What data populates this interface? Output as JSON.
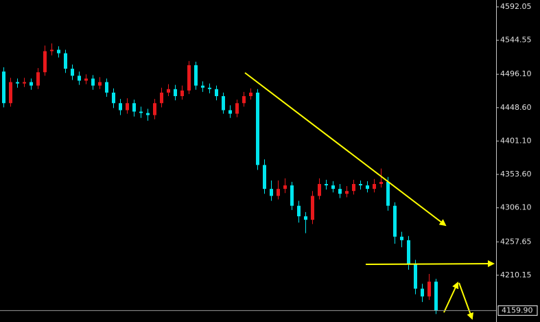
{
  "chart_data": {
    "type": "candlestick",
    "up_color": "#e8191c",
    "down_color": "#00e5ee",
    "ylim": [
      4143.6,
      4601.8
    ],
    "yticks": [
      4592.05,
      4544.55,
      {
        "value": 4496.1,
        "label": "4496.10"
      },
      {
        "value": 4448.6,
        "label": "4448.60"
      },
      {
        "value": 4401.1,
        "label": "4401.10"
      },
      {
        "value": 4353.6,
        "label": "4353.60"
      },
      {
        "value": 4306.1,
        "label": "4306.10"
      },
      4257.65,
      4210.15
    ],
    "last_price": {
      "value": 4159.9,
      "label": "4159.90"
    },
    "open": [
      4500,
      4455,
      4485,
      4483,
      4485,
      4480,
      4499,
      4529,
      4531,
      4526,
      4504,
      4494,
      4487,
      4490,
      4480,
      4485,
      4470,
      4455,
      4445,
      4455,
      4443,
      4441,
      4438,
      4455,
      4470,
      4475,
      4465,
      4473,
      4509,
      4480,
      4477,
      4475,
      4465,
      4445,
      4440,
      4455,
      4465,
      4470,
      4367,
      4333,
      4323,
      4333,
      4338,
      4309,
      4294,
      4289,
      4323,
      4340,
      4338,
      4333,
      4326,
      4330,
      4340,
      4338,
      4333,
      4340,
      4343,
      4309,
      4265,
      4260,
      4226,
      4191,
      4180,
      4201
    ],
    "high": [
      4506,
      4491,
      4490,
      4491,
      4490,
      4505,
      4537,
      4540,
      4536,
      4531,
      4510,
      4500,
      4496,
      4495,
      4492,
      4490,
      4476,
      4461,
      4462,
      4460,
      4450,
      4447,
      4461,
      4477,
      4482,
      4481,
      4480,
      4515,
      4514,
      4486,
      4483,
      4480,
      4470,
      4452,
      4460,
      4471,
      4476,
      4475,
      4375,
      4345,
      4345,
      4348,
      4343,
      4316,
      4300,
      4330,
      4348,
      4346,
      4344,
      4340,
      4337,
      4346,
      4345,
      4344,
      4347,
      4362,
      4350,
      4314,
      4272,
      4266,
      4232,
      4198,
      4212,
      4205
    ],
    "low": [
      4449,
      4450,
      4477,
      4478,
      4474,
      4475,
      4494,
      4523,
      4520,
      4498,
      4488,
      4481,
      4482,
      4474,
      4475,
      4464,
      4448,
      4438,
      4440,
      4436,
      4434,
      4430,
      4432,
      4449,
      4465,
      4459,
      4460,
      4468,
      4474,
      4471,
      4469,
      4459,
      4440,
      4434,
      4435,
      4450,
      4460,
      4360,
      4326,
      4316,
      4318,
      4327,
      4303,
      4285,
      4270,
      4283,
      4318,
      4332,
      4328,
      4320,
      4321,
      4325,
      4332,
      4328,
      4328,
      4335,
      4302,
      4255,
      4250,
      4218,
      4183,
      4172,
      4175,
      4155
    ],
    "close": [
      4455,
      4485,
      4483,
      4485,
      4480,
      4499,
      4529,
      4531,
      4526,
      4504,
      4494,
      4487,
      4490,
      4480,
      4485,
      4470,
      4455,
      4445,
      4455,
      4443,
      4441,
      4438,
      4455,
      4470,
      4475,
      4465,
      4473,
      4509,
      4480,
      4477,
      4475,
      4465,
      4445,
      4440,
      4455,
      4465,
      4470,
      4367,
      4333,
      4323,
      4333,
      4338,
      4309,
      4294,
      4289,
      4323,
      4340,
      4338,
      4333,
      4326,
      4330,
      4340,
      4338,
      4333,
      4340,
      4343,
      4309,
      4265,
      4260,
      4226,
      4191,
      4180,
      4201,
      4159.9
    ]
  }
}
